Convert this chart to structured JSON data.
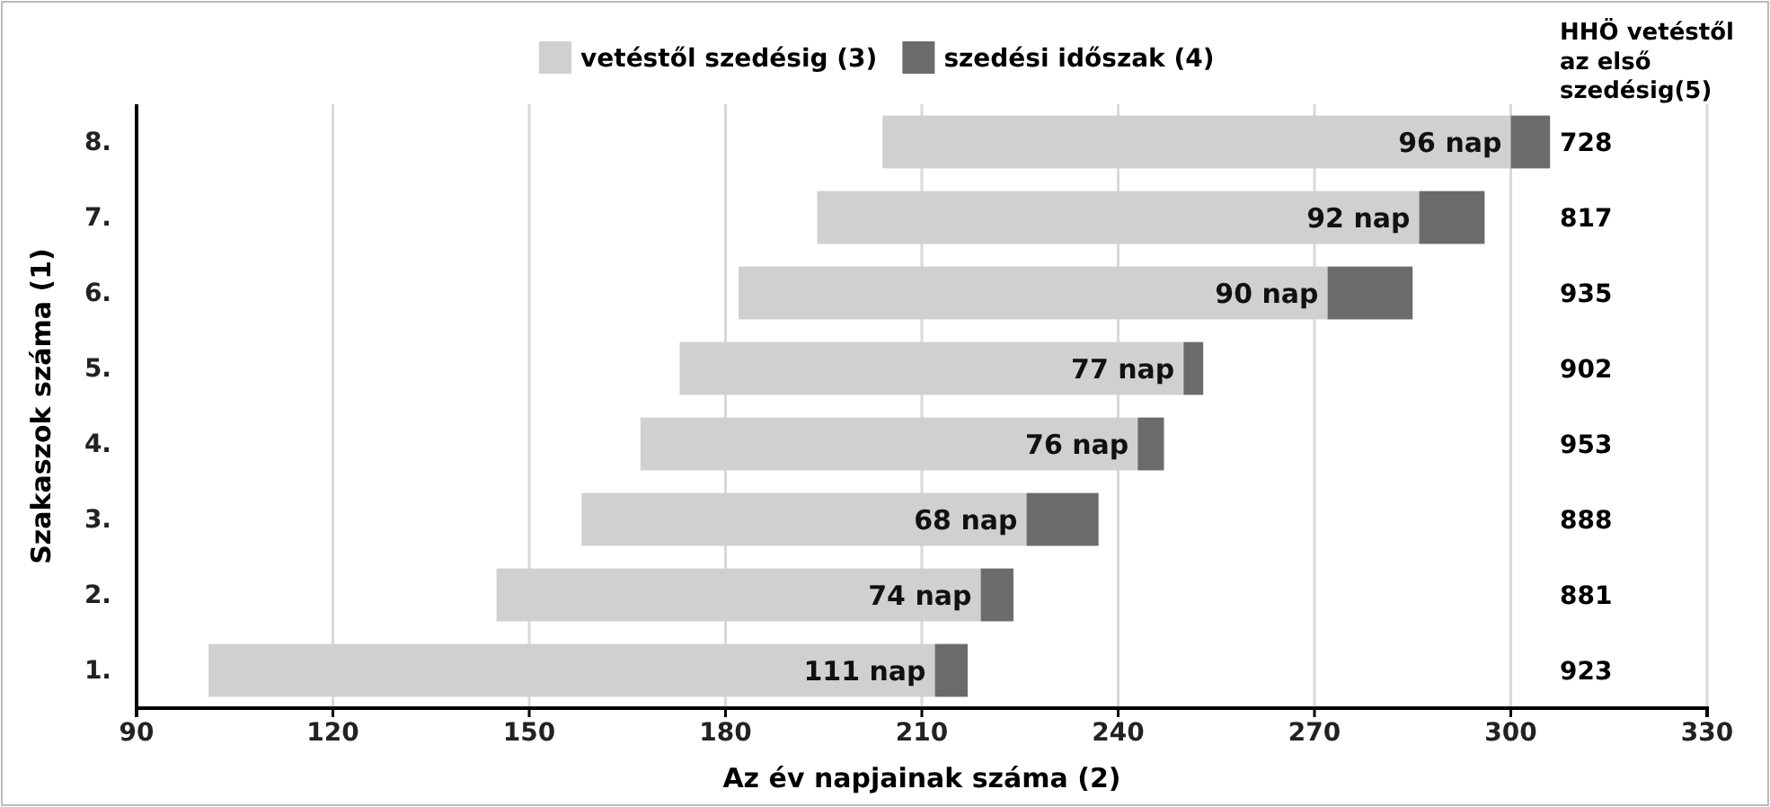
{
  "chart_data": {
    "type": "bar",
    "orientation": "horizontal",
    "xlabel": "Az év napjainak száma (2)",
    "ylabel": "Szakaszok száma (1)",
    "categories": [
      "8.",
      "7.",
      "6.",
      "5.",
      "4.",
      "3.",
      "2.",
      "1."
    ],
    "series": [
      {
        "name": "vetéstől szedésig (3)",
        "color": "#d0d0d0",
        "base": [
          204,
          194,
          182,
          173,
          167,
          158,
          145,
          101
        ],
        "values": [
          96,
          92,
          90,
          77,
          76,
          68,
          74,
          111
        ],
        "value_labels": [
          "96 nap",
          "92 nap",
          "90 nap",
          "77 nap",
          "76 nap",
          "68 nap",
          "74 nap",
          "111 nap"
        ]
      },
      {
        "name": "szedési időszak (4)",
        "color": "#6b6b6b",
        "base": [
          300,
          286,
          272,
          250,
          243,
          226,
          219,
          212
        ],
        "values": [
          6,
          10,
          13,
          3,
          4,
          11,
          5,
          5
        ]
      }
    ],
    "xlim": [
      90,
      330
    ],
    "xticks": [
      90,
      120,
      150,
      180,
      210,
      240,
      270,
      300,
      330
    ],
    "grid": "x",
    "legend": "top",
    "annotations": [
      "HHÖ vetéstől az első szedésig(5)",
      "728",
      "817",
      "935",
      "902",
      "953",
      "888",
      "881",
      "923"
    ]
  }
}
